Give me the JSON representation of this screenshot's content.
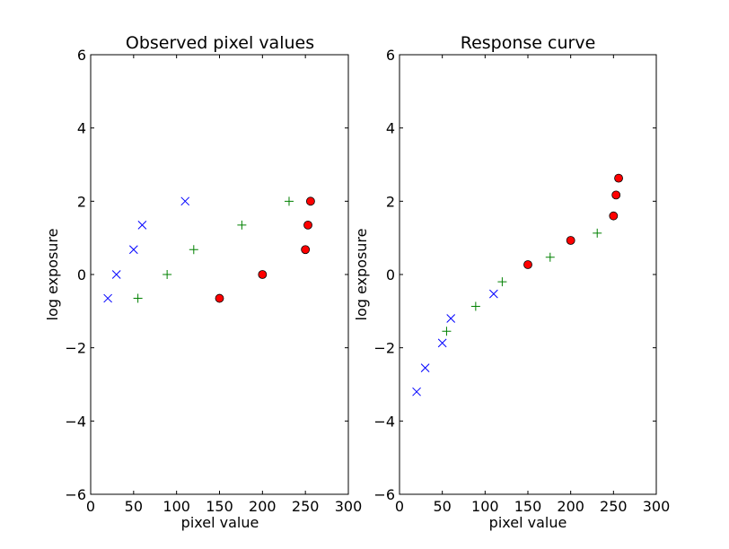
{
  "colors": {
    "circle_fill": "#ff0000",
    "circle_edge": "#000000",
    "cross": "#0000ff",
    "plus": "#008000",
    "axes": "#000000",
    "background": "#ffffff"
  },
  "chart_data": [
    {
      "type": "scatter",
      "title": "Observed pixel values",
      "xlabel": "pixel value",
      "ylabel": "log exposure",
      "xlim": [
        0,
        300
      ],
      "ylim": [
        -6,
        6
      ],
      "xticks": [
        "0",
        "50",
        "100",
        "150",
        "200",
        "250",
        "300"
      ],
      "yticks": [
        "−6",
        "−4",
        "−2",
        "0",
        "2",
        "4",
        "6"
      ],
      "grid": false,
      "series": [
        {
          "marker": "x",
          "color": "#0000ff",
          "x": [
            20,
            30,
            50,
            60,
            110
          ],
          "y": [
            -0.65,
            0,
            0.68,
            1.35,
            2
          ]
        },
        {
          "marker": "+",
          "color": "#008000",
          "x": [
            55,
            89,
            120,
            176,
            231
          ],
          "y": [
            -0.65,
            0,
            0.68,
            1.35,
            2
          ]
        },
        {
          "marker": "o",
          "color": "#ff0000",
          "x": [
            150,
            200,
            250,
            253,
            256
          ],
          "y": [
            -0.65,
            0,
            0.68,
            1.35,
            2
          ]
        }
      ]
    },
    {
      "type": "scatter",
      "title": "Response curve",
      "xlabel": "pixel value",
      "ylabel": "log exposure",
      "xlim": [
        0,
        300
      ],
      "ylim": [
        -6,
        6
      ],
      "xticks": [
        "0",
        "50",
        "100",
        "150",
        "200",
        "250",
        "300"
      ],
      "yticks": [
        "−6",
        "−4",
        "−2",
        "0",
        "2",
        "4",
        "6"
      ],
      "grid": false,
      "series": [
        {
          "marker": "x",
          "color": "#0000ff",
          "x": [
            20,
            30,
            50,
            60,
            110
          ],
          "y": [
            -3.2,
            -2.55,
            -1.87,
            -1.2,
            -0.53
          ]
        },
        {
          "marker": "+",
          "color": "#008000",
          "x": [
            55,
            89,
            120,
            176,
            231
          ],
          "y": [
            -1.55,
            -0.87,
            -0.2,
            0.47,
            1.13
          ]
        },
        {
          "marker": "o",
          "color": "#ff0000",
          "x": [
            150,
            200,
            250,
            253,
            256
          ],
          "y": [
            0.27,
            0.93,
            1.6,
            2.17,
            2.63
          ]
        }
      ]
    }
  ]
}
